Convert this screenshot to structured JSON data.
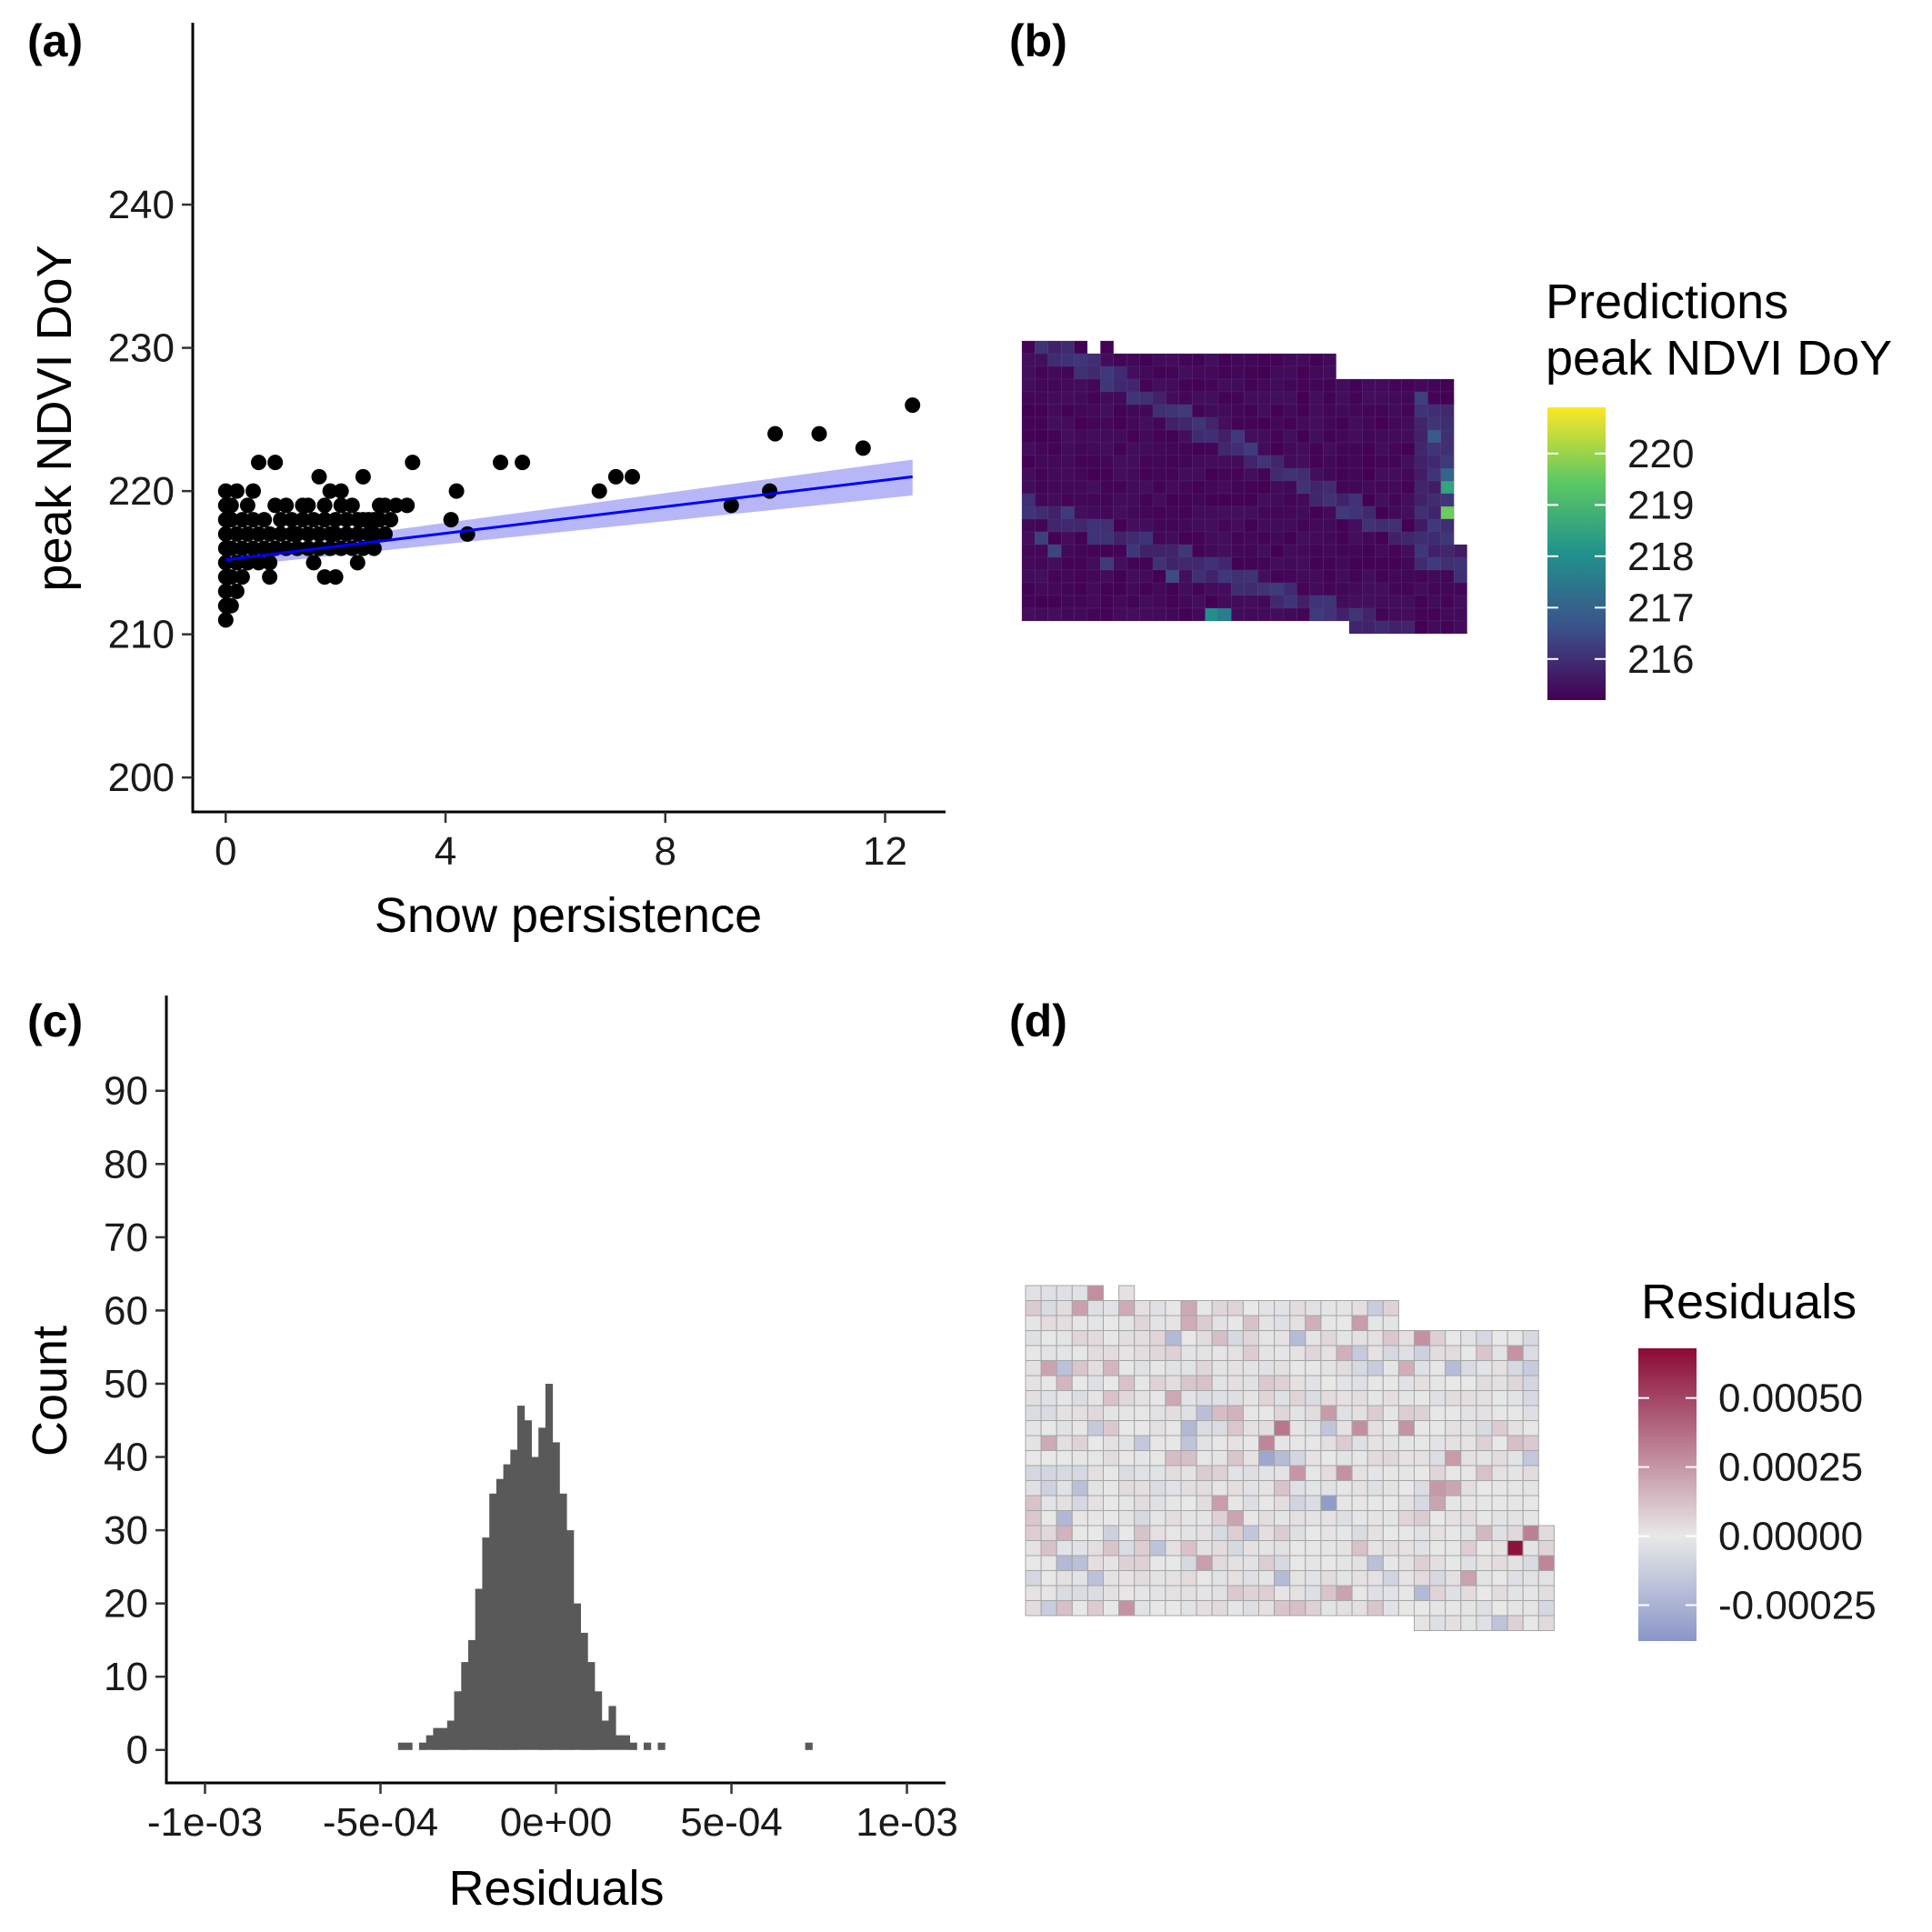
{
  "panels": {
    "a": {
      "tag": "(a)",
      "xlabel": "Snow persistence",
      "ylabel": "peak NDVI DoY"
    },
    "b": {
      "tag": "(b)",
      "legend_title_1": "Predictions",
      "legend_title_2": "peak NDVI DoY"
    },
    "c": {
      "tag": "(c)",
      "xlabel": "Residuals",
      "ylabel": "Count"
    },
    "d": {
      "tag": "(d)",
      "legend_title": "Residuals"
    }
  },
  "colors": {
    "points": "#000000",
    "fit_line": "#0000ff",
    "ci_band": "#b3b3f7",
    "histogram": "#595959",
    "viridis": [
      "#440154",
      "#3b528b",
      "#21918c",
      "#5ec962",
      "#fde725"
    ],
    "diverging": [
      "#8a96c8",
      "#e8e8e8",
      "#8b0a35"
    ],
    "grid_stroke": "#a6a6a6"
  },
  "chart_data": [
    {
      "id": "a",
      "type": "scatter",
      "xlabel": "Snow persistence",
      "ylabel": "peak NDVI DoY",
      "xlim": [
        -0.6,
        13.1
      ],
      "ylim": [
        197.6,
        252.7
      ],
      "xticks": [
        0,
        4,
        8,
        12
      ],
      "xtick_labels": [
        "0",
        "4",
        "8",
        "12"
      ],
      "yticks": [
        200,
        210,
        220,
        230,
        240
      ],
      "ytick_labels": [
        "200",
        "210",
        "220",
        "230",
        "240"
      ],
      "grid": false,
      "points": [
        [
          0,
          211
        ],
        [
          0,
          212
        ],
        [
          0,
          213
        ],
        [
          0,
          214
        ],
        [
          0,
          215
        ],
        [
          0,
          216
        ],
        [
          0,
          217
        ],
        [
          0,
          218
        ],
        [
          0,
          219
        ],
        [
          0,
          220
        ],
        [
          0.1,
          212
        ],
        [
          0.1,
          214
        ],
        [
          0.1,
          216
        ],
        [
          0.1,
          218
        ],
        [
          0.1,
          219
        ],
        [
          0.2,
          213
        ],
        [
          0.2,
          215
        ],
        [
          0.2,
          217
        ],
        [
          0.2,
          220
        ],
        [
          0.3,
          214
        ],
        [
          0.3,
          216
        ],
        [
          0.3,
          218
        ],
        [
          0.4,
          215
        ],
        [
          0.4,
          217
        ],
        [
          0.4,
          219
        ],
        [
          0.5,
          216
        ],
        [
          0.5,
          218
        ],
        [
          0.5,
          220
        ],
        [
          0.6,
          215
        ],
        [
          0.6,
          217
        ],
        [
          0.6,
          222
        ],
        [
          0.7,
          216
        ],
        [
          0.7,
          218
        ],
        [
          0.8,
          214
        ],
        [
          0.8,
          215
        ],
        [
          0.8,
          217
        ],
        [
          0.9,
          216
        ],
        [
          0.9,
          219
        ],
        [
          0.9,
          222
        ],
        [
          1.0,
          217
        ],
        [
          1.0,
          218
        ],
        [
          1.1,
          216
        ],
        [
          1.1,
          219
        ],
        [
          1.2,
          217
        ],
        [
          1.2,
          218
        ],
        [
          1.3,
          216
        ],
        [
          1.3,
          217
        ],
        [
          1.4,
          218
        ],
        [
          1.4,
          219
        ],
        [
          1.5,
          217
        ],
        [
          1.5,
          216
        ],
        [
          1.5,
          219
        ],
        [
          1.6,
          215
        ],
        [
          1.6,
          218
        ],
        [
          1.7,
          216
        ],
        [
          1.7,
          217
        ],
        [
          1.7,
          221
        ],
        [
          1.8,
          214
        ],
        [
          1.8,
          218
        ],
        [
          1.8,
          219
        ],
        [
          1.9,
          216
        ],
        [
          1.9,
          217
        ],
        [
          1.9,
          220
        ],
        [
          2.0,
          214
        ],
        [
          2.0,
          217
        ],
        [
          2.0,
          218
        ],
        [
          2.1,
          216
        ],
        [
          2.1,
          219
        ],
        [
          2.1,
          220
        ],
        [
          2.2,
          217
        ],
        [
          2.2,
          218
        ],
        [
          2.3,
          216
        ],
        [
          2.3,
          219
        ],
        [
          2.4,
          215
        ],
        [
          2.4,
          217
        ],
        [
          2.4,
          218
        ],
        [
          2.5,
          216
        ],
        [
          2.5,
          218
        ],
        [
          2.5,
          221
        ],
        [
          2.6,
          217
        ],
        [
          2.6,
          218
        ],
        [
          2.7,
          216
        ],
        [
          2.7,
          217
        ],
        [
          2.7,
          218
        ],
        [
          2.8,
          218
        ],
        [
          2.8,
          219
        ],
        [
          2.9,
          217
        ],
        [
          2.9,
          219
        ],
        [
          3.0,
          218
        ],
        [
          3.1,
          219
        ],
        [
          3.3,
          219
        ],
        [
          3.4,
          222
        ],
        [
          4.1,
          218
        ],
        [
          4.2,
          220
        ],
        [
          4.4,
          217
        ],
        [
          5.0,
          222
        ],
        [
          5.4,
          222
        ],
        [
          6.8,
          220
        ],
        [
          7.1,
          221
        ],
        [
          7.4,
          221
        ],
        [
          9.2,
          219
        ],
        [
          9.9,
          220
        ],
        [
          10.0,
          224
        ],
        [
          10.8,
          224
        ],
        [
          11.6,
          223
        ],
        [
          12.5,
          226
        ]
      ],
      "fit_line": {
        "x": [
          0,
          12.5
        ],
        "y": [
          215.2,
          221.0
        ]
      },
      "ci_band": {
        "x": [
          0,
          12.5
        ],
        "lower": [
          214.7,
          219.7
        ],
        "upper": [
          215.7,
          222.2
        ]
      }
    },
    {
      "id": "c",
      "type": "bar",
      "xlabel": "Residuals",
      "ylabel": "Count",
      "xlim": [
        -0.00111,
        0.00111
      ],
      "ylim": [
        -4.5,
        103
      ],
      "xticks": [
        -0.001,
        -0.0005,
        0,
        0.0005,
        0.001
      ],
      "xtick_labels": [
        "-1e-03",
        "-5e-04",
        "0e+00",
        "5e-04",
        "1e-03"
      ],
      "yticks": [
        0,
        10,
        20,
        30,
        40,
        50,
        60,
        70,
        80,
        90
      ],
      "ytick_labels": [
        "0",
        "10",
        "20",
        "30",
        "40",
        "50",
        "60",
        "70",
        "80",
        "90"
      ],
      "bin_width": 2e-05,
      "bin_start": -0.00045,
      "counts": [
        1,
        1,
        0,
        1,
        2,
        3,
        3,
        4,
        8,
        12,
        15,
        22,
        29,
        35,
        37,
        39,
        41,
        47,
        45,
        40,
        44,
        50,
        42,
        35,
        30,
        20,
        16,
        12,
        8,
        4,
        6,
        2,
        2,
        1,
        0,
        1,
        0,
        1,
        0,
        0,
        0,
        0,
        0,
        0,
        0,
        0,
        0,
        0,
        0,
        0,
        0,
        0,
        0,
        0,
        0,
        0,
        0,
        0,
        1
      ]
    },
    {
      "id": "b",
      "type": "heatmap",
      "legend_title": [
        "Predictions",
        "peak NDVI DoY"
      ],
      "colorbar_ticks": [
        216,
        217,
        218,
        219,
        220
      ],
      "colorbar_tick_labels": [
        "216",
        "217",
        "218",
        "219",
        "220"
      ],
      "colorbar_range": [
        215.2,
        220.9
      ],
      "grid_cols": 34,
      "grid_rows": 22,
      "hotspots": [
        {
          "col": 12,
          "row": 5,
          "value": 216.2
        },
        {
          "col": 13,
          "row": 6,
          "value": 216.1
        },
        {
          "col": 14,
          "row": 7,
          "value": 216.0
        },
        {
          "col": 16,
          "row": 8,
          "value": 216.0
        },
        {
          "col": 30,
          "row": 4,
          "value": 216.3
        },
        {
          "col": 31,
          "row": 5,
          "value": 216.0
        },
        {
          "col": 31,
          "row": 7,
          "value": 216.8
        },
        {
          "col": 32,
          "row": 9,
          "value": 216.2
        },
        {
          "col": 32,
          "row": 10,
          "value": 217.0
        },
        {
          "col": 32,
          "row": 11,
          "value": 218.5
        },
        {
          "col": 33,
          "row": 12,
          "value": 220.9
        },
        {
          "col": 32,
          "row": 13,
          "value": 219.6
        },
        {
          "col": 33,
          "row": 13,
          "value": 220.2
        },
        {
          "col": 34,
          "row": 14,
          "value": 219.0
        },
        {
          "col": 33,
          "row": 15,
          "value": 217.5
        },
        {
          "col": 34,
          "row": 16,
          "value": 218.2
        },
        {
          "col": 1,
          "row": 15,
          "value": 216.3
        },
        {
          "col": 2,
          "row": 16,
          "value": 216.4
        },
        {
          "col": 6,
          "row": 17,
          "value": 216.2
        },
        {
          "col": 11,
          "row": 18,
          "value": 216.5
        },
        {
          "col": 14,
          "row": 21,
          "value": 218.0
        },
        {
          "col": 15,
          "row": 21,
          "value": 217.6
        }
      ]
    },
    {
      "id": "d",
      "type": "heatmap",
      "legend_title": "Residuals",
      "colorbar_ticks": [
        -0.00025,
        0,
        0.00025,
        0.0005
      ],
      "colorbar_tick_labels": [
        "-0.00025",
        "0.00000",
        "0.00025",
        "0.00050"
      ],
      "colorbar_range": [
        -0.00038,
        0.00068
      ],
      "grid_cols": 34,
      "grid_rows": 22
    }
  ]
}
